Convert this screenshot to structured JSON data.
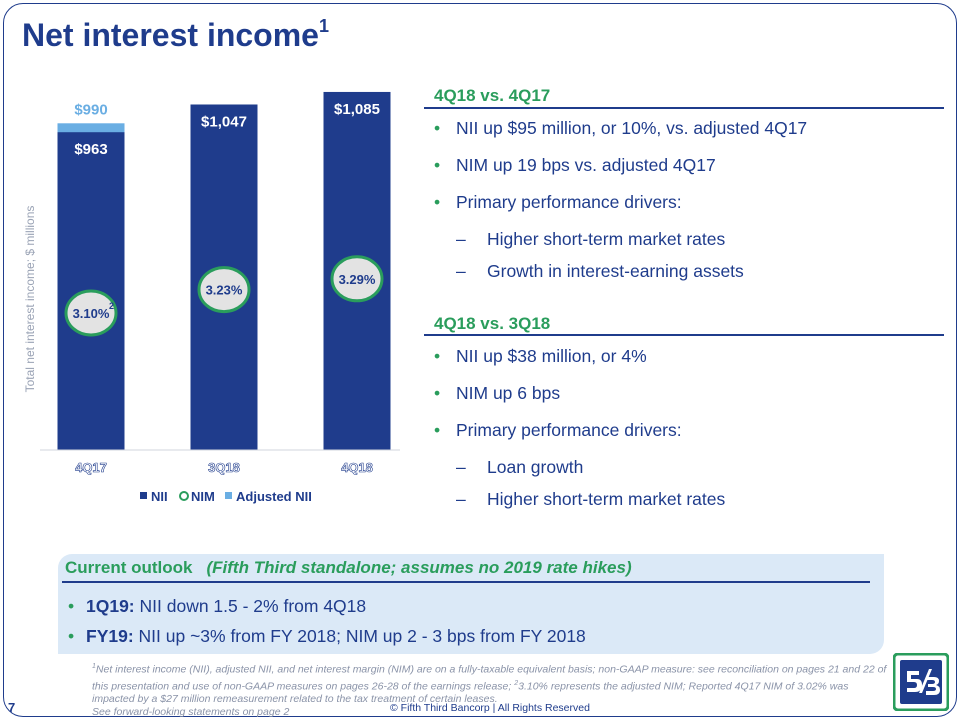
{
  "page": {
    "title": "Net interest income",
    "title_sup": "1",
    "page_number": "7",
    "copyright": "© Fifth Third Bancorp | All Rights Reserved"
  },
  "chart_data": {
    "type": "bar",
    "ylabel": "Total net interest income; $ millions",
    "categories": [
      "4Q17",
      "3Q18",
      "4Q18"
    ],
    "series": [
      {
        "name": "NII",
        "values": [
          963,
          1047,
          1085
        ],
        "labels": [
          "$963",
          "$1,047",
          "$1,085"
        ]
      },
      {
        "name": "Adjusted NII",
        "values": [
          990,
          null,
          null
        ],
        "labels": [
          "$990",
          "",
          ""
        ]
      }
    ],
    "nim": {
      "name": "NIM",
      "values": [
        3.1,
        3.23,
        3.29
      ],
      "labels": [
        "3.10%",
        "3.23%",
        "3.29%"
      ],
      "first_sup": "2"
    },
    "legend": [
      "NII",
      "NIM",
      "Adjusted NII"
    ],
    "ylim": [
      0,
      1100
    ],
    "colors": {
      "nii": "#1f3c8c",
      "adjusted": "#6aaee3",
      "nim_ring": "#2a9d5c"
    }
  },
  "section1": {
    "heading": "4Q18 vs. 4Q17",
    "bullets": [
      "NII up $95 million, or 10%, vs. adjusted 4Q17",
      "NIM up 19 bps vs. adjusted 4Q17",
      "Primary performance drivers:"
    ],
    "dashes": [
      "Higher short-term market rates",
      "Growth in interest-earning assets"
    ]
  },
  "section2": {
    "heading": "4Q18 vs. 3Q18",
    "bullets": [
      "NII up $38 million, or 4%",
      "NIM up 6 bps",
      "Primary performance drivers:"
    ],
    "dashes": [
      "Loan growth",
      "Higher short-term market rates"
    ]
  },
  "outlook": {
    "title": "Current outlook",
    "subtitle": "(Fifth Third standalone; assumes no 2019 rate hikes)",
    "items": [
      {
        "lead": "1Q19:",
        "text": " NII down 1.5 - 2% from 4Q18"
      },
      {
        "lead": "FY19:",
        "text": " NII up ~3% from FY 2018; NIM up 2 - 3 bps from FY 2018"
      }
    ]
  },
  "footnote": {
    "sup1": "1",
    "part1": "Net interest income (NII), adjusted NII, and net interest margin (NIM) are on a fully-taxable equivalent basis; non-GAAP measure: see reconciliation on pages 21 and 22 of this presentation and use of non-GAAP measures on pages 26-28 of the earnings release; ",
    "sup2": "2",
    "part2": "3.10% represents the adjusted NIM; Reported 4Q17 NIM of 3.02% was impacted by a $27 million remeasurement related to the tax treatment of certain leases.",
    "line2": "See forward-looking statements on page 2"
  }
}
